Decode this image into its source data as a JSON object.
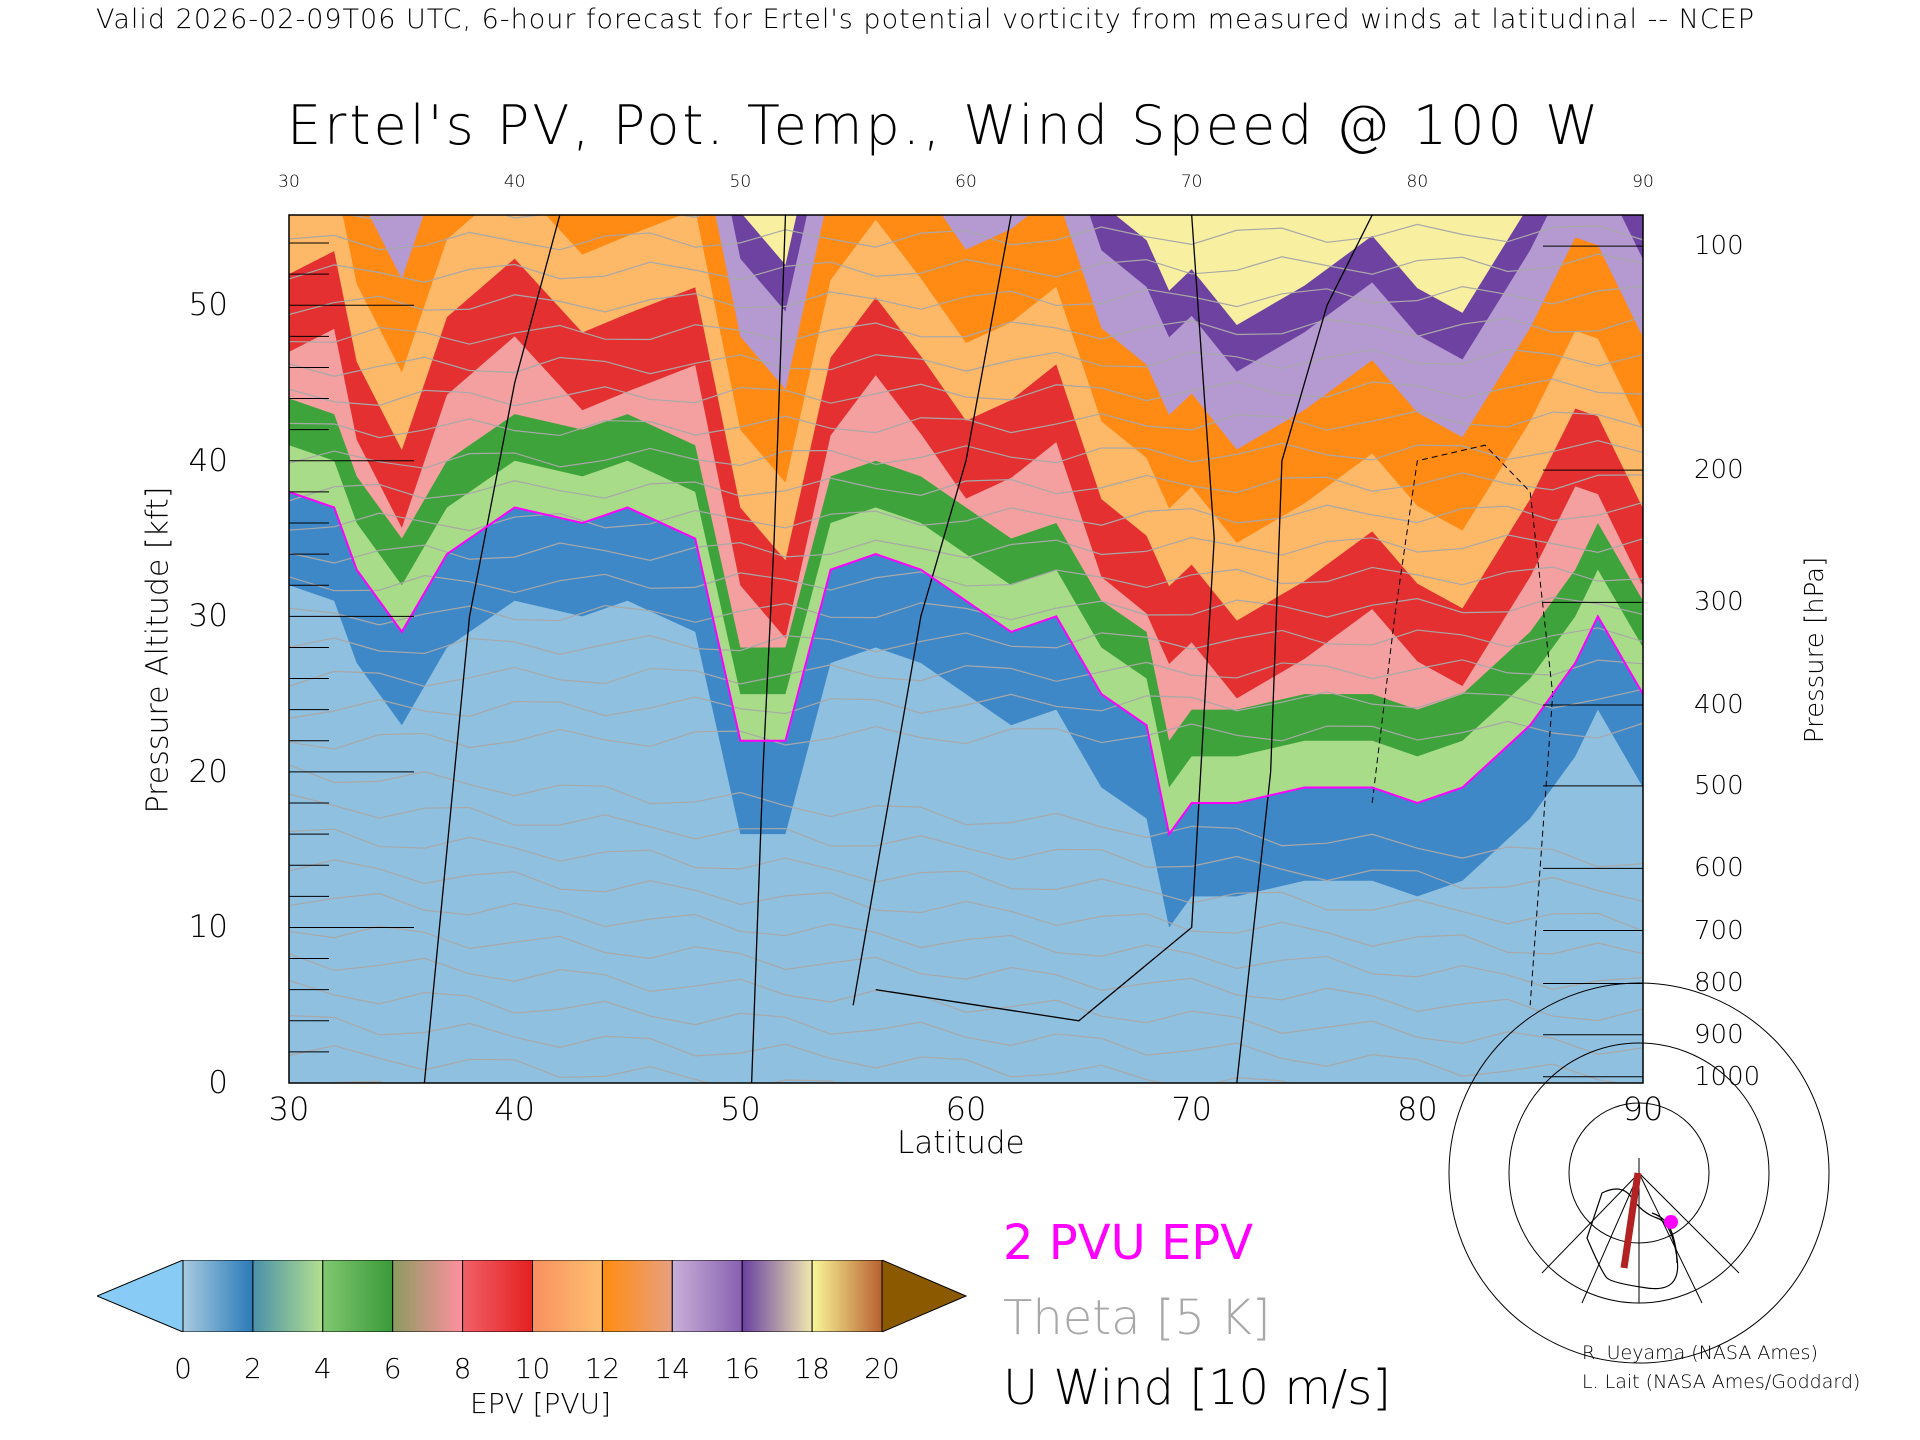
{
  "header": {
    "caption": "Valid 2026-02-09T06 UTC, 6-hour forecast for Ertel's potential vorticity from measured winds at latitudinal -- NCEP",
    "title": "Ertel's PV, Pot. Temp., Wind Speed @ 100 W"
  },
  "chart_data": {
    "type": "heatmap",
    "title": "Ertel's PV, Pot. Temp., Wind Speed @ 100 W",
    "xlabel": "Latitude",
    "ylabel": "Pressure Altitude [kft]",
    "ylabel_right": "Pressure [hPa]",
    "xlim": [
      30,
      90
    ],
    "ylim": [
      0,
      55.8
    ],
    "x_ticks": [
      "30",
      "40",
      "50",
      "60",
      "70",
      "80",
      "90"
    ],
    "y_ticks": [
      "0",
      "10",
      "20",
      "30",
      "40",
      "50"
    ],
    "pressure_ticks": [
      "100",
      "200",
      "300",
      "400",
      "500",
      "600",
      "700",
      "800",
      "900",
      "1000"
    ],
    "pressure_tick_kft": [
      53.8,
      39.4,
      30.9,
      24.3,
      19.1,
      13.8,
      9.8,
      6.4,
      3.1,
      0.4
    ],
    "pv2_contour": {
      "lat": [
        30,
        32,
        33,
        35,
        37,
        40,
        43,
        45,
        48,
        50,
        52,
        54,
        56,
        58,
        60,
        62,
        64,
        66,
        68,
        69,
        70,
        72,
        75,
        78,
        80,
        82,
        85,
        87,
        88,
        90
      ],
      "kft": [
        38,
        37,
        33,
        29,
        34,
        37,
        36,
        37,
        35,
        22,
        22,
        33,
        34,
        33,
        31,
        29,
        30,
        25,
        23,
        16,
        18,
        18,
        19,
        19,
        18,
        19,
        23,
        27,
        30,
        25
      ]
    },
    "colorbar": {
      "label": "EPV [PVU]",
      "ticks": [
        "0",
        "2",
        "4",
        "6",
        "8",
        "10",
        "12",
        "14",
        "16",
        "18",
        "20"
      ],
      "under_color": "#88ccf5",
      "over_color": "#8b5a00",
      "segments": [
        [
          "#a8cbe0",
          "#2a7ab8"
        ],
        [
          "#4a90a8",
          "#b4e090"
        ],
        [
          "#80c870",
          "#3a9a3a"
        ],
        [
          "#8a9c60",
          "#ff90a0"
        ],
        [
          "#f06068",
          "#e42020"
        ],
        [
          "#f89060",
          "#ffc070"
        ],
        [
          "#ff8c10",
          "#e8a080"
        ],
        [
          "#c8b0d8",
          "#8860b0"
        ],
        [
          "#6840a0",
          "#f0e8b0"
        ],
        [
          "#f8f898",
          "#b86030"
        ]
      ]
    },
    "legend": {
      "pvu": "2 PVU EPV",
      "theta": "Theta [5 K]",
      "wind": "U Wind [10 m/s]"
    },
    "colors": {
      "pvu_line": "#ff00ff",
      "theta_line": "#a8a8a8",
      "wind_line": "#000000"
    }
  },
  "credits": [
    "R. Ueyama (NASA Ames)",
    "L. Lait (NASA Ames/Goddard)"
  ]
}
